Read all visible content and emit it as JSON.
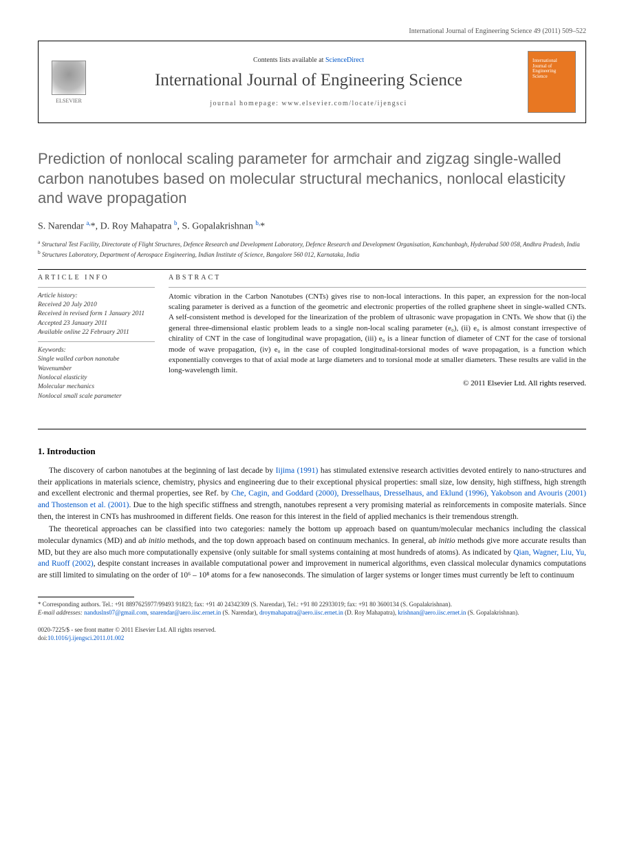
{
  "header": {
    "journal_ref": "International Journal of Engineering Science 49 (2011) 509–522"
  },
  "metabox": {
    "elsevier": "ELSEVIER",
    "contents_prefix": "Contents lists available at ",
    "contents_link": "ScienceDirect",
    "journal_title": "International Journal of Engineering Science",
    "homepage_label": "journal homepage: www.elsevier.com/locate/ijengsci",
    "cover_text": "International Journal of Engineering Science"
  },
  "article": {
    "title": "Prediction of nonlocal scaling parameter for armchair and zigzag single-walled carbon nanotubes based on molecular structural mechanics, nonlocal elasticity and wave propagation",
    "authors_html": "S. Narendar <sup>a,</sup><span class='star'>*</span>, D. Roy Mahapatra <sup>b</sup>, S. Gopalakrishnan <sup>b,</sup><span class='star'>*</span>",
    "affiliations": {
      "a": "Structural Test Facility, Directorate of Flight Structures, Defence Research and Development Laboratory, Defence Research and Development Organisation, Kanchanbagh, Hyderabad 500 058, Andhra Pradesh, India",
      "b": "Structures Laboratory, Department of Aerospace Engineering, Indian Institute of Science, Bangalore 560 012, Karnataka, India"
    }
  },
  "info": {
    "head": "ARTICLE INFO",
    "history_label": "Article history:",
    "received": "Received 20 July 2010",
    "revised": "Received in revised form 1 January 2011",
    "accepted": "Accepted 23 January 2011",
    "online": "Available online 22 February 2011",
    "keywords_label": "Keywords:",
    "keywords": [
      "Single walled carbon nanotube",
      "Wavenumber",
      "Nonlocal elasticity",
      "Molecular mechanics",
      "Nonlocal small scale parameter"
    ]
  },
  "abstract": {
    "head": "ABSTRACT",
    "text": "Atomic vibration in the Carbon Nanotubes (CNTs) gives rise to non-local interactions. In this paper, an expression for the non-local scaling parameter is derived as a function of the geometric and electronic properties of the rolled graphene sheet in single-walled CNTs. A self-consistent method is developed for the linearization of the problem of ultrasonic wave propagation in CNTs. We show that (i) the general three-dimensional elastic problem leads to a single non-local scaling parameter (e₀), (ii) e₀ is almost constant irrespective of chirality of CNT in the case of longitudinal wave propagation, (iii) e₀ is a linear function of diameter of CNT for the case of torsional mode of wave propagation, (iv) e₀ in the case of coupled longitudinal-torsional modes of wave propagation, is a function which exponentially converges to that of axial mode at large diameters and to torsional mode at smaller diameters. These results are valid in the long-wavelength limit.",
    "copyright": "© 2011 Elsevier Ltd. All rights reserved."
  },
  "section1": {
    "heading": "1. Introduction",
    "p1_pre": "The discovery of carbon nanotubes at the beginning of last decade by ",
    "p1_link1": "Iijima (1991)",
    "p1_mid1": " has stimulated extensive research activities devoted entirely to nano-structures and their applications in materials science, chemistry, physics and engineering due to their exceptional physical properties: small size, low density, high stiffness, high strength and excellent electronic and thermal properties, see Ref. by ",
    "p1_link2": "Che, Cagin, and Goddard (2000), Dresselhaus, Dresselhaus, and Eklund (1996), Yakobson and Avouris (2001) and Thostenson et al. (2001)",
    "p1_post": ". Due to the high specific stiffness and strength, nanotubes represent a very promising material as reinforcements in composite materials. Since then, the interest in CNTs has mushroomed in different fields. One reason for this interest in the field of applied mechanics is their tremendous strength.",
    "p2_pre": "The theoretical approaches can be classified into two categories: namely the bottom up approach based on quantum/molecular mechanics including the classical molecular dynamics (MD) and ",
    "p2_em1": "ab initio",
    "p2_mid1": " methods, and the top down approach based on continuum mechanics. In general, ",
    "p2_em2": "ab initio",
    "p2_mid2": " methods give more accurate results than MD, but they are also much more computationally expensive (only suitable for small systems containing at most hundreds of atoms). As indicated by ",
    "p2_link1": "Qian, Wagner, Liu, Yu, and Ruoff (2002)",
    "p2_post": ", despite constant increases in available computational power and improvement in numerical algorithms, even classical molecular dynamics computations are still limited to simulating on the order of 10⁶ – 10⁸ atoms for a few nanoseconds. The simulation of larger systems or longer times must currently be left to continuum"
  },
  "footnotes": {
    "corr": "* Corresponding authors. Tel.: +91 8897625977/99493 91823; fax: +91 40 24342309 (S. Narendar), Tel.: +91 80 22933019; fax: +91 80 3600134 (S. Gopalakrishnan).",
    "email_label": "E-mail addresses: ",
    "emails": [
      {
        "addr": "nanduslns07@gmail.com",
        "tail": ", "
      },
      {
        "addr": "snarendar@aero.iisc.ernet.in",
        "tail": " (S. Narendar), "
      },
      {
        "addr": "droymahapatra@aero.iisc.ernet.in",
        "tail": " (D. Roy Mahapatra), "
      },
      {
        "addr": "krishnan@aero.iisc.ernet.in",
        "tail": " (S. Gopalakrishnan)."
      }
    ]
  },
  "pagefoot": {
    "issn": "0020-7225/$ - see front matter © 2011 Elsevier Ltd. All rights reserved.",
    "doi_label": "doi:",
    "doi": "10.1016/j.ijengsci.2011.01.002"
  },
  "colors": {
    "link": "#0056c7",
    "title_gray": "#676767",
    "cover_orange": "#e87722"
  }
}
